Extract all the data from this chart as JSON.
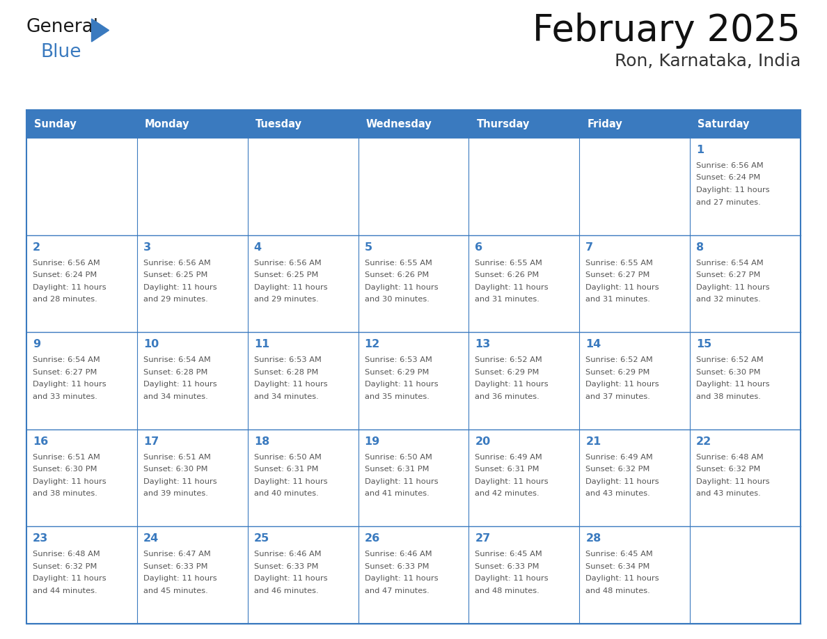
{
  "title": "February 2025",
  "subtitle": "Ron, Karnataka, India",
  "header_color": "#3a7abf",
  "header_text_color": "#ffffff",
  "cell_bg_color": "#ffffff",
  "grid_line_color": "#3a7abf",
  "day_number_color": "#3a7abf",
  "info_text_color": "#555555",
  "days_of_week": [
    "Sunday",
    "Monday",
    "Tuesday",
    "Wednesday",
    "Thursday",
    "Friday",
    "Saturday"
  ],
  "calendar_data": [
    [
      null,
      null,
      null,
      null,
      null,
      null,
      {
        "day": 1,
        "sunrise": "6:56 AM",
        "sunset": "6:24 PM",
        "daylight": "11 hours and 27 minutes."
      }
    ],
    [
      {
        "day": 2,
        "sunrise": "6:56 AM",
        "sunset": "6:24 PM",
        "daylight": "11 hours and 28 minutes."
      },
      {
        "day": 3,
        "sunrise": "6:56 AM",
        "sunset": "6:25 PM",
        "daylight": "11 hours and 29 minutes."
      },
      {
        "day": 4,
        "sunrise": "6:56 AM",
        "sunset": "6:25 PM",
        "daylight": "11 hours and 29 minutes."
      },
      {
        "day": 5,
        "sunrise": "6:55 AM",
        "sunset": "6:26 PM",
        "daylight": "11 hours and 30 minutes."
      },
      {
        "day": 6,
        "sunrise": "6:55 AM",
        "sunset": "6:26 PM",
        "daylight": "11 hours and 31 minutes."
      },
      {
        "day": 7,
        "sunrise": "6:55 AM",
        "sunset": "6:27 PM",
        "daylight": "11 hours and 31 minutes."
      },
      {
        "day": 8,
        "sunrise": "6:54 AM",
        "sunset": "6:27 PM",
        "daylight": "11 hours and 32 minutes."
      }
    ],
    [
      {
        "day": 9,
        "sunrise": "6:54 AM",
        "sunset": "6:27 PM",
        "daylight": "11 hours and 33 minutes."
      },
      {
        "day": 10,
        "sunrise": "6:54 AM",
        "sunset": "6:28 PM",
        "daylight": "11 hours and 34 minutes."
      },
      {
        "day": 11,
        "sunrise": "6:53 AM",
        "sunset": "6:28 PM",
        "daylight": "11 hours and 34 minutes."
      },
      {
        "day": 12,
        "sunrise": "6:53 AM",
        "sunset": "6:29 PM",
        "daylight": "11 hours and 35 minutes."
      },
      {
        "day": 13,
        "sunrise": "6:52 AM",
        "sunset": "6:29 PM",
        "daylight": "11 hours and 36 minutes."
      },
      {
        "day": 14,
        "sunrise": "6:52 AM",
        "sunset": "6:29 PM",
        "daylight": "11 hours and 37 minutes."
      },
      {
        "day": 15,
        "sunrise": "6:52 AM",
        "sunset": "6:30 PM",
        "daylight": "11 hours and 38 minutes."
      }
    ],
    [
      {
        "day": 16,
        "sunrise": "6:51 AM",
        "sunset": "6:30 PM",
        "daylight": "11 hours and 38 minutes."
      },
      {
        "day": 17,
        "sunrise": "6:51 AM",
        "sunset": "6:30 PM",
        "daylight": "11 hours and 39 minutes."
      },
      {
        "day": 18,
        "sunrise": "6:50 AM",
        "sunset": "6:31 PM",
        "daylight": "11 hours and 40 minutes."
      },
      {
        "day": 19,
        "sunrise": "6:50 AM",
        "sunset": "6:31 PM",
        "daylight": "11 hours and 41 minutes."
      },
      {
        "day": 20,
        "sunrise": "6:49 AM",
        "sunset": "6:31 PM",
        "daylight": "11 hours and 42 minutes."
      },
      {
        "day": 21,
        "sunrise": "6:49 AM",
        "sunset": "6:32 PM",
        "daylight": "11 hours and 43 minutes."
      },
      {
        "day": 22,
        "sunrise": "6:48 AM",
        "sunset": "6:32 PM",
        "daylight": "11 hours and 43 minutes."
      }
    ],
    [
      {
        "day": 23,
        "sunrise": "6:48 AM",
        "sunset": "6:32 PM",
        "daylight": "11 hours and 44 minutes."
      },
      {
        "day": 24,
        "sunrise": "6:47 AM",
        "sunset": "6:33 PM",
        "daylight": "11 hours and 45 minutes."
      },
      {
        "day": 25,
        "sunrise": "6:46 AM",
        "sunset": "6:33 PM",
        "daylight": "11 hours and 46 minutes."
      },
      {
        "day": 26,
        "sunrise": "6:46 AM",
        "sunset": "6:33 PM",
        "daylight": "11 hours and 47 minutes."
      },
      {
        "day": 27,
        "sunrise": "6:45 AM",
        "sunset": "6:33 PM",
        "daylight": "11 hours and 48 minutes."
      },
      {
        "day": 28,
        "sunrise": "6:45 AM",
        "sunset": "6:34 PM",
        "daylight": "11 hours and 48 minutes."
      },
      null
    ]
  ],
  "logo_general_color": "#1a1a1a",
  "logo_blue_color": "#3a7abf",
  "logo_triangle_color": "#3a7abf",
  "fig_width": 11.88,
  "fig_height": 9.18,
  "dpi": 100
}
